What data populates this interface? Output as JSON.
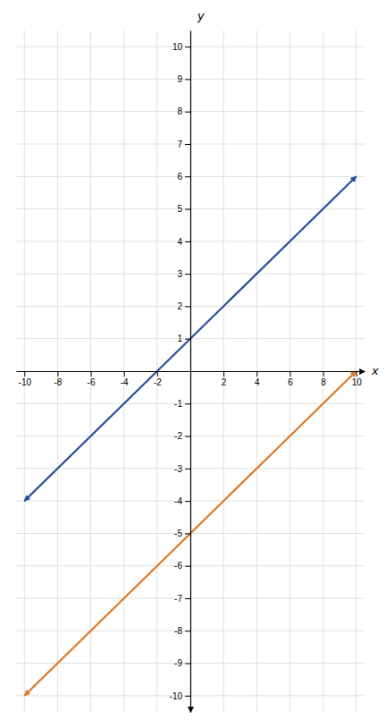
{
  "chart_data": {
    "type": "line",
    "x": [
      -10,
      10
    ],
    "xlabel": "x",
    "ylabel": "y",
    "series": [
      {
        "color": "#2b4fa0",
        "values": [
          -4,
          6
        ]
      },
      {
        "color": "#e07828",
        "values": [
          -10,
          0
        ]
      }
    ],
    "xlim": [
      -10.5,
      10.5
    ],
    "ylim": [
      -10.5,
      10.5
    ],
    "xticks": [
      -10,
      -8,
      -6,
      -4,
      -2,
      2,
      4,
      6,
      8,
      10
    ],
    "yticks": [
      -10,
      -9,
      -8,
      -7,
      -6,
      -5,
      -4,
      -3,
      -2,
      -1,
      1,
      2,
      3,
      4,
      5,
      6,
      7,
      8,
      9,
      10
    ],
    "grid": true
  }
}
